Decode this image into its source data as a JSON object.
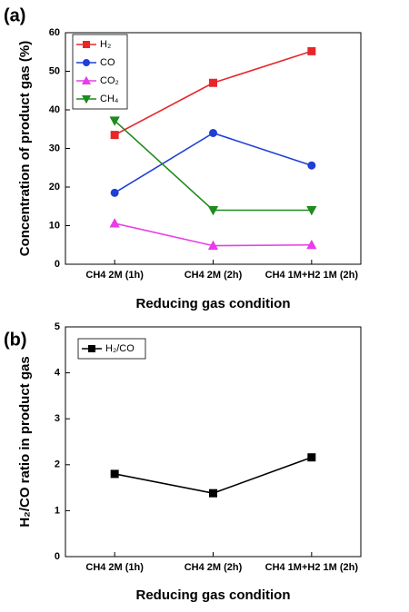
{
  "chart_data": [
    {
      "type": "line",
      "label": "(a)",
      "x_label": "Reducing gas condition",
      "y_label": "Concentration of product gas  (%)",
      "categories": [
        "CH4 2M (1h)",
        "CH4 2M (2h)",
        "CH4 1M+H2 1M (2h)"
      ],
      "series": [
        {
          "name": "H₂",
          "color": "#e8262a",
          "marker": "square",
          "values": [
            33.5,
            47,
            55.2
          ]
        },
        {
          "name": "CO",
          "color": "#1f3fd6",
          "marker": "circle",
          "values": [
            18.5,
            34,
            25.6
          ]
        },
        {
          "name": "CO₂",
          "color": "#e83de8",
          "marker": "triangle-up",
          "values": [
            10.6,
            4.8,
            5.0
          ]
        },
        {
          "name": "CH₄",
          "color": "#1f8a1f",
          "marker": "triangle-down",
          "values": [
            37.2,
            14,
            14
          ]
        }
      ],
      "ylim": [
        0,
        60
      ],
      "yticks": [
        0,
        10,
        20,
        30,
        40,
        50,
        60
      ],
      "legend": "upper left"
    },
    {
      "type": "line",
      "label": "(b)",
      "x_label": "Reducing gas condition",
      "y_label": "H₂/CO ratio in product gas",
      "categories": [
        "CH4 2M (1h)",
        "CH4 2M (2h)",
        "CH4 1M+H2 1M (2h)"
      ],
      "series": [
        {
          "name": "H₂/CO",
          "color": "#000000",
          "marker": "square",
          "values": [
            1.8,
            1.38,
            2.16
          ]
        }
      ],
      "ylim": [
        0,
        5
      ],
      "yticks": [
        0,
        1,
        2,
        3,
        4,
        5
      ],
      "legend": "upper left"
    }
  ]
}
